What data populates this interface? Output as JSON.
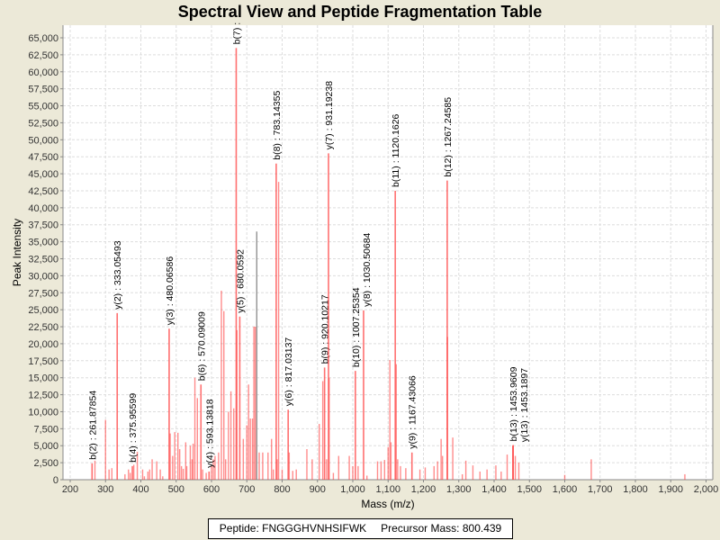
{
  "chart_data": {
    "type": "bar",
    "title": "Spectral View and Peptide Fragmentation Table",
    "xlabel": "Mass (m/z)",
    "ylabel": "Peak Intensity",
    "xlim": [
      180,
      2020
    ],
    "ylim": [
      0,
      66900
    ],
    "grid": true,
    "x_ticks": [
      "200",
      "300",
      "400",
      "500",
      "600",
      "700",
      "800",
      "900",
      "1,000",
      "1,100",
      "1,200",
      "1,300",
      "1,400",
      "1,500",
      "1,600",
      "1,700",
      "1,800",
      "1,900",
      "2,000"
    ],
    "y_ticks": [
      "0",
      "2,500",
      "5,000",
      "7,500",
      "10,000",
      "12,500",
      "15,000",
      "17,500",
      "20,000",
      "22,500",
      "25,000",
      "27,500",
      "30,000",
      "32,500",
      "35,000",
      "37,500",
      "40,000",
      "42,500",
      "45,000",
      "47,500",
      "50,000",
      "52,500",
      "55,000",
      "57,500",
      "60,000",
      "62,500",
      "65,000"
    ],
    "colors": {
      "peak": "#FF4040",
      "highlight": "#808080"
    },
    "annotated_peaks": [
      {
        "mz": 261.87854,
        "intensity": 2400,
        "label": "b(2) : 261.87854"
      },
      {
        "mz": 333.05493,
        "intensity": 24500,
        "label": "y(2) : 333.05493"
      },
      {
        "mz": 375.95599,
        "intensity": 2000,
        "label": "b(4) : 375.95599"
      },
      {
        "mz": 480.06586,
        "intensity": 22200,
        "label": "y(3) : 480.06586"
      },
      {
        "mz": 570.09009,
        "intensity": 14000,
        "label": "b(6) : 570.09009"
      },
      {
        "mz": 593.13818,
        "intensity": 1200,
        "label": "y(4) : 593.13818"
      },
      {
        "mz": 670.0,
        "intensity": 63500,
        "label": "b(7) :"
      },
      {
        "mz": 680.0592,
        "intensity": 24000,
        "label": "y(5) : 680.0592"
      },
      {
        "mz": 783.14355,
        "intensity": 46500,
        "label": "b(8) : 783.14355"
      },
      {
        "mz": 817.03137,
        "intensity": 10300,
        "label": "y(6) : 817.03137"
      },
      {
        "mz": 920.10217,
        "intensity": 16500,
        "label": "b(9) : 920.10217"
      },
      {
        "mz": 931.19238,
        "intensity": 48000,
        "label": "y(7) : 931.19238"
      },
      {
        "mz": 1007.25354,
        "intensity": 16000,
        "label": "b(10) : 1007.25354"
      },
      {
        "mz": 1030.50684,
        "intensity": 24900,
        "label": "y(8) : 1030.50684"
      },
      {
        "mz": 1120.1626,
        "intensity": 42500,
        "label": "b(11) : 1120.1626"
      },
      {
        "mz": 1167.43066,
        "intensity": 4000,
        "label": "y(9) : 1167.43066"
      },
      {
        "mz": 1267.24585,
        "intensity": 44000,
        "label": "b(12) : 1267.24585"
      },
      {
        "mz": 1453.9609,
        "intensity": 5100,
        "label": "b(13) : 1453.9609"
      },
      {
        "mz": 1453.1897,
        "intensity": 5000,
        "label": "y(13) : 1453.1897"
      }
    ],
    "other_peaks": [
      [
        270,
        2800
      ],
      [
        300,
        8800
      ],
      [
        310,
        1500
      ],
      [
        318,
        1700
      ],
      [
        355,
        800
      ],
      [
        365,
        1500
      ],
      [
        370,
        1000
      ],
      [
        380,
        2200
      ],
      [
        390,
        4100
      ],
      [
        405,
        1500
      ],
      [
        410,
        500
      ],
      [
        420,
        1200
      ],
      [
        425,
        1500
      ],
      [
        432,
        3000
      ],
      [
        445,
        2700
      ],
      [
        455,
        1500
      ],
      [
        462,
        500
      ],
      [
        483,
        6800
      ],
      [
        490,
        3500
      ],
      [
        496,
        7000
      ],
      [
        505,
        6900
      ],
      [
        510,
        4500
      ],
      [
        515,
        2000
      ],
      [
        520,
        1600
      ],
      [
        527,
        5500
      ],
      [
        530,
        2000
      ],
      [
        540,
        5000
      ],
      [
        545,
        3000
      ],
      [
        548,
        5300
      ],
      [
        553,
        15000
      ],
      [
        560,
        12000
      ],
      [
        575,
        1500
      ],
      [
        585,
        1000
      ],
      [
        600,
        2000
      ],
      [
        605,
        3000
      ],
      [
        610,
        3500
      ],
      [
        620,
        4000
      ],
      [
        628,
        27800
      ],
      [
        635,
        24800
      ],
      [
        640,
        3000
      ],
      [
        648,
        10000
      ],
      [
        655,
        13000
      ],
      [
        663,
        10500
      ],
      [
        672,
        22000
      ],
      [
        690,
        6000
      ],
      [
        700,
        8000
      ],
      [
        705,
        14000
      ],
      [
        710,
        9000
      ],
      [
        716,
        9000
      ],
      [
        720,
        22500
      ],
      [
        724,
        22500
      ],
      [
        735,
        4000
      ],
      [
        745,
        4000
      ],
      [
        760,
        4000
      ],
      [
        770,
        6000
      ],
      [
        775,
        1500
      ],
      [
        786,
        3000
      ],
      [
        790,
        43800
      ],
      [
        800,
        1500
      ],
      [
        820,
        4000
      ],
      [
        830,
        1300
      ],
      [
        840,
        1500
      ],
      [
        870,
        4500
      ],
      [
        885,
        3000
      ],
      [
        905,
        8200
      ],
      [
        915,
        14500
      ],
      [
        926,
        3000
      ],
      [
        933,
        15000
      ],
      [
        945,
        1000
      ],
      [
        960,
        3500
      ],
      [
        990,
        3500
      ],
      [
        1000,
        2000
      ],
      [
        1015,
        2000
      ],
      [
        1040,
        600
      ],
      [
        1070,
        2700
      ],
      [
        1080,
        2700
      ],
      [
        1090,
        2900
      ],
      [
        1100,
        4800
      ],
      [
        1105,
        17600
      ],
      [
        1108,
        5500
      ],
      [
        1123,
        17000
      ],
      [
        1127,
        3000
      ],
      [
        1135,
        2000
      ],
      [
        1150,
        1700
      ],
      [
        1190,
        1500
      ],
      [
        1205,
        1800
      ],
      [
        1230,
        2000
      ],
      [
        1240,
        2700
      ],
      [
        1250,
        6000
      ],
      [
        1254,
        3500
      ],
      [
        1268,
        21000
      ],
      [
        1283,
        6200
      ],
      [
        1310,
        800
      ],
      [
        1320,
        2800
      ],
      [
        1340,
        2100
      ],
      [
        1360,
        1200
      ],
      [
        1380,
        1500
      ],
      [
        1405,
        2100
      ],
      [
        1420,
        1200
      ],
      [
        1437,
        3700
      ],
      [
        1460,
        3500
      ],
      [
        1470,
        2500
      ],
      [
        1600,
        700
      ],
      [
        1675,
        3000
      ],
      [
        1940,
        800
      ]
    ],
    "highlight_peak": [
      728,
      36500
    ]
  },
  "legend": {
    "peptide": "Peptide: FNGGGHVNHSIFWK",
    "precursor": "Precursor Mass: 800.439"
  }
}
